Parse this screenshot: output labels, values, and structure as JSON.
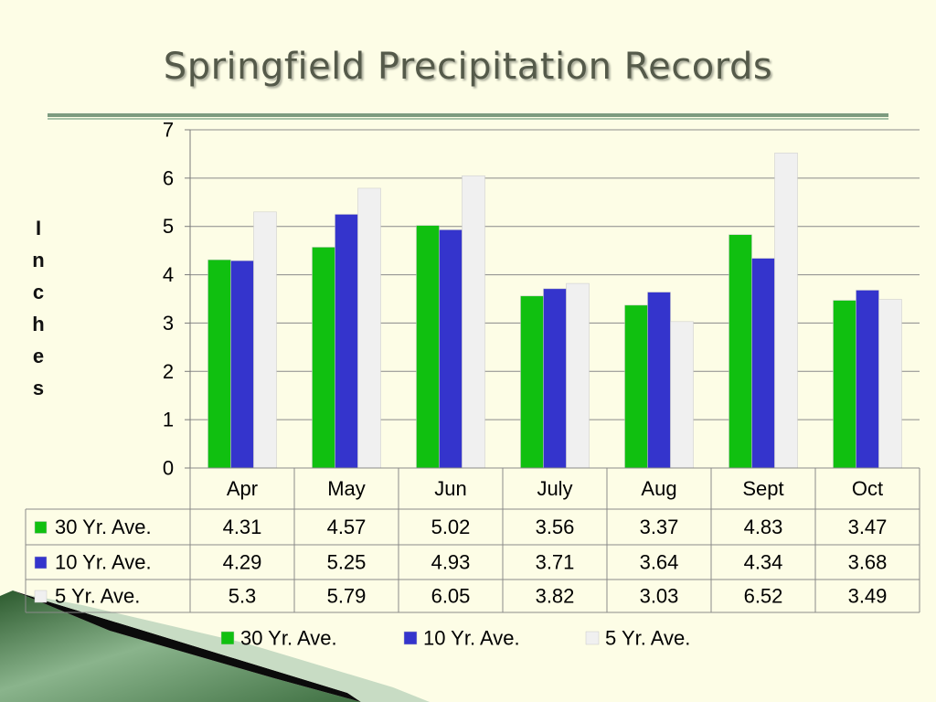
{
  "slide": {
    "title": "Springfield Precipitation Records",
    "ylabel_letters": [
      "I",
      "n",
      "c",
      "h",
      "e",
      "s"
    ]
  },
  "chart_data": {
    "type": "bar",
    "title": "Springfield Precipitation Records",
    "ylabel": "Inches",
    "xlabel": "",
    "ylim": [
      0,
      7
    ],
    "yticks": [
      0,
      1,
      2,
      3,
      4,
      5,
      6,
      7
    ],
    "grid": true,
    "legend_position": "bottom",
    "categories": [
      "Apr",
      "May",
      "Jun",
      "July",
      "Aug",
      "Sept",
      "Oct"
    ],
    "series": [
      {
        "name": "30 Yr. Ave.",
        "color": "#10c010",
        "values": [
          4.31,
          4.57,
          5.02,
          3.56,
          3.37,
          4.83,
          3.47
        ]
      },
      {
        "name": "10 Yr. Ave.",
        "color": "#3434cc",
        "values": [
          4.29,
          5.25,
          4.93,
          3.71,
          3.64,
          4.34,
          3.68
        ]
      },
      {
        "name": "5 Yr. Ave.",
        "color": "#f0f0f0",
        "values": [
          5.3,
          5.79,
          6.05,
          3.82,
          3.03,
          6.52,
          3.49
        ]
      }
    ],
    "table_values": [
      [
        "4.31",
        "4.57",
        "5.02",
        "3.56",
        "3.37",
        "4.83",
        "3.47"
      ],
      [
        "4.29",
        "5.25",
        "4.93",
        "3.71",
        "3.64",
        "4.34",
        "3.68"
      ],
      [
        "5.3",
        "5.79",
        "6.05",
        "3.82",
        "3.03",
        "6.52",
        "3.49"
      ]
    ]
  }
}
